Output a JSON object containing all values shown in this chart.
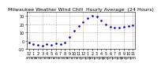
{
  "title": "Milwaukee Weather Wind Chill  Hourly Average  (24 Hours)",
  "hours": [
    0,
    1,
    2,
    3,
    4,
    5,
    6,
    7,
    8,
    9,
    10,
    11,
    12,
    13,
    14,
    15,
    16,
    17,
    18,
    19,
    20,
    21,
    22,
    23
  ],
  "values": [
    -2,
    -4,
    -5,
    -6,
    -4,
    -5,
    -3,
    -4,
    -2,
    5,
    12,
    18,
    23,
    28,
    30,
    29,
    25,
    20,
    17,
    16,
    16,
    17,
    18,
    19
  ],
  "dot_color": "#0000dd",
  "bg_color": "#ffffff",
  "grid_color": "#aaaaaa",
  "ylim": [
    -10,
    35
  ],
  "ytick_vals": [
    -10,
    0,
    10,
    20,
    30
  ],
  "ytick_labels": [
    "-10",
    "0",
    "10",
    "20",
    "30"
  ],
  "vgrid_hours": [
    0,
    3,
    6,
    9,
    12,
    15,
    18,
    21,
    23
  ],
  "xtick_vals": [
    0,
    1,
    2,
    3,
    4,
    5,
    6,
    7,
    8,
    9,
    10,
    11,
    12,
    13,
    14,
    15,
    16,
    17,
    18,
    19,
    20,
    21,
    22,
    23
  ],
  "xtick_labels": [
    "12",
    "1",
    "2",
    "3",
    "4",
    "5",
    "6",
    "7",
    "8",
    "9",
    "10",
    "11",
    "12",
    "1",
    "2",
    "3",
    "4",
    "5",
    "6",
    "7",
    "8",
    "9",
    "10",
    "11"
  ],
  "xtick_labels2": [
    "am",
    "am",
    "am",
    "am",
    "am",
    "am",
    "am",
    "am",
    "am",
    "am",
    "am",
    "am",
    "pm",
    "pm",
    "pm",
    "pm",
    "pm",
    "pm",
    "pm",
    "pm",
    "pm",
    "pm",
    "pm",
    "pm"
  ],
  "title_fontsize": 4.5,
  "tick_fontsize": 3.5
}
